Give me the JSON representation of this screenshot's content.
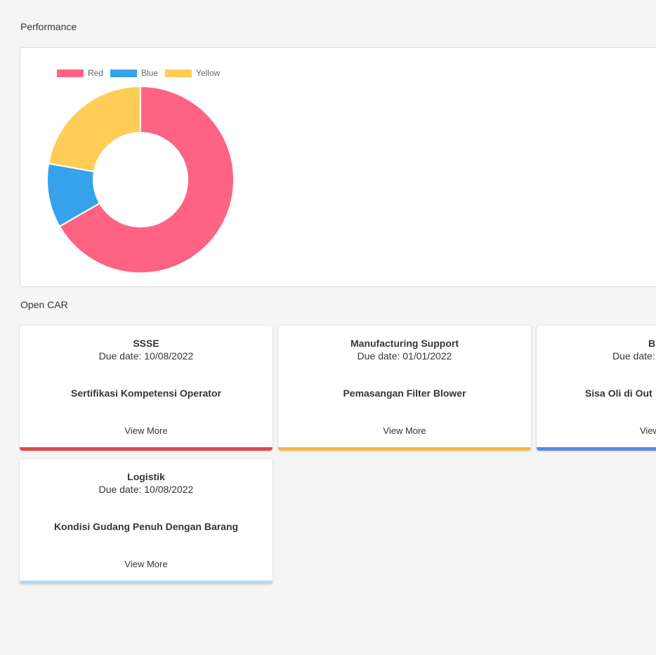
{
  "performance": {
    "title": "Performance"
  },
  "chart_data": {
    "type": "pie",
    "donut": true,
    "categories": [
      "Red",
      "Blue",
      "Yellow"
    ],
    "values": [
      300,
      50,
      100
    ],
    "colors": [
      "#ff6384",
      "#36a2eb",
      "#ffcd56"
    ],
    "legend": "top-left"
  },
  "open_car": {
    "title": "Open CAR",
    "cards": [
      {
        "department": "SSSE",
        "due": "Due date: 10/08/2022",
        "subject": "Sertifikasi Kompetensi Operator",
        "link": "View More",
        "accent": "#e04b4b"
      },
      {
        "department": "Manufacturing Support",
        "due": "Due date: 01/01/2022",
        "subject": "Pemasangan Filter Blower",
        "link": "View More",
        "accent": "#f5b94a"
      },
      {
        "department": "B",
        "due": "Due date:",
        "subject": "Sisa Oli di Out",
        "link": "View",
        "accent": "#5b86e5"
      },
      {
        "department": "Logistik",
        "due": "Due date: 10/08/2022",
        "subject": "Kondisi Gudang Penuh Dengan Barang",
        "link": "View More",
        "accent": "#b9d8f2"
      }
    ]
  }
}
